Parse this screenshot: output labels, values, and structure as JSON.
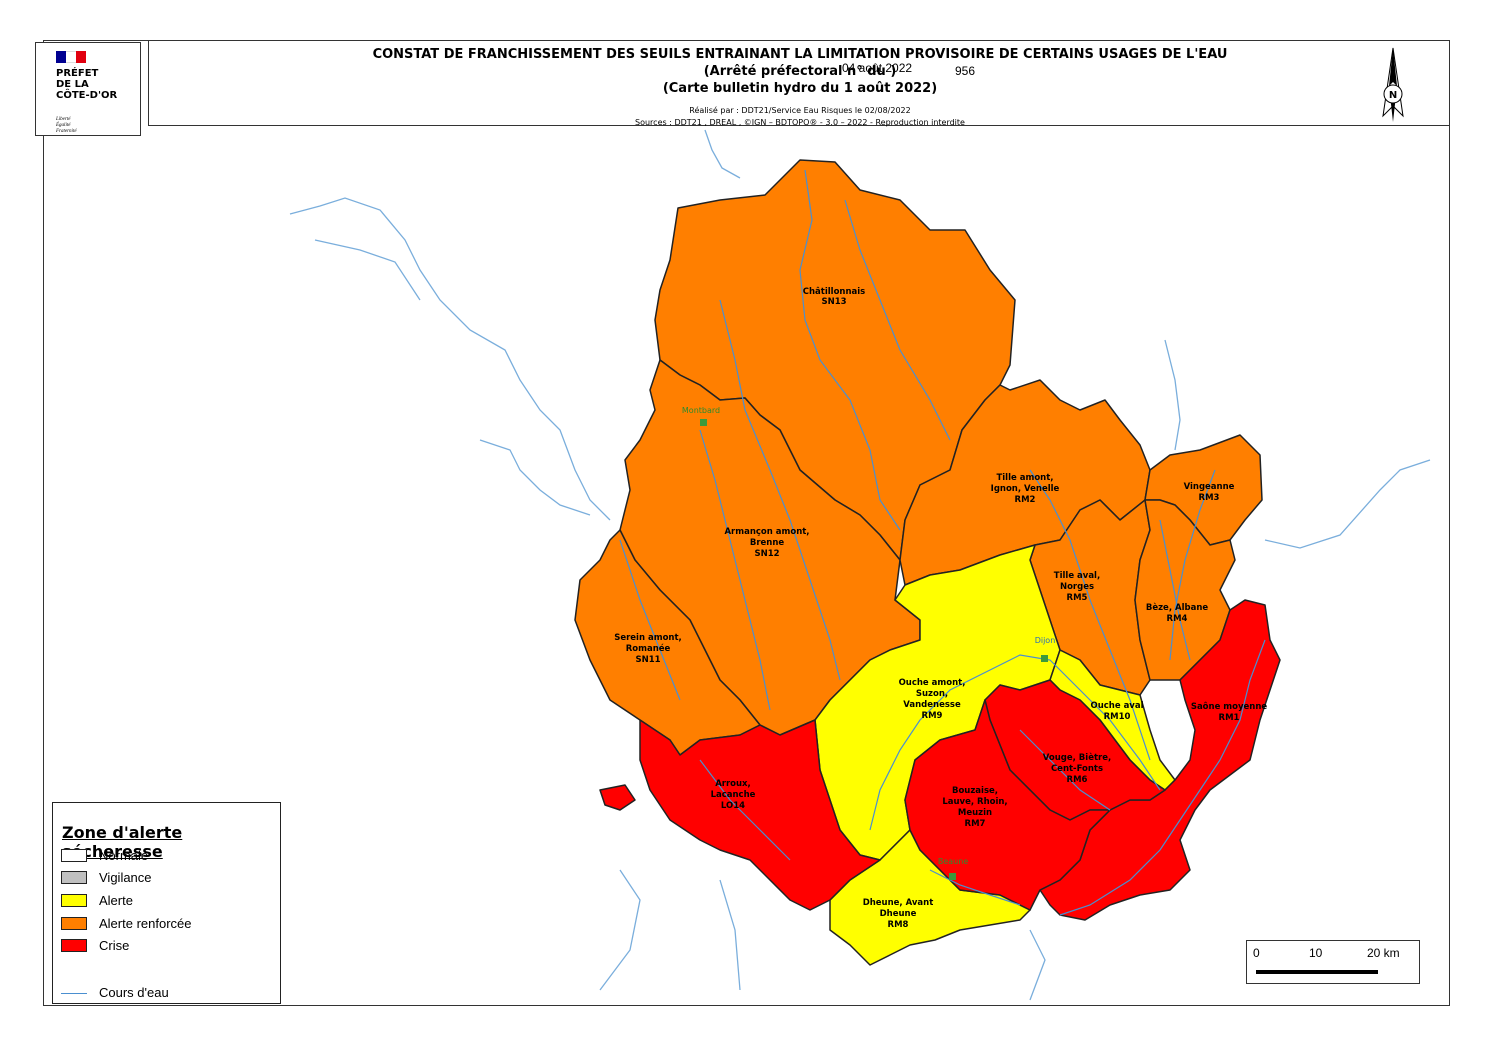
{
  "header": {
    "title_line1": "CONSTAT DE FRANCHISSEMENT DES SEUILS ENTRAINANT LA LIMITATION PROVISOIRE DE CERTAINS USAGES DE L'EAU",
    "title_line2": "(Arrêté préfectoral n°            du                                       )",
    "arrete_number": "956",
    "arrete_date": "04 août 2022",
    "title_line3": "(Carte bulletin hydro du 1 août 2022)",
    "made_by": "Réalisé par : DDT21/Service Eau Risques le 02/08/2022",
    "sources": "Sources : DDT21 , DREAL , ©IGN – BDTOPO® - 3.0 – 2022 - Reproduction interdite"
  },
  "logo": {
    "line1": "PRÉFET",
    "line2": "DE LA",
    "line3": "CÔTE-D'OR",
    "motto1": "Liberté",
    "motto2": "Égalité",
    "motto3": "Fraternité",
    "flag_colors": [
      "#000091",
      "#ffffff",
      "#e1000f"
    ]
  },
  "north_arrow": {
    "label": "N"
  },
  "colors": {
    "alerte": "#ffff00",
    "alerte_renforcee": "#ff7f00",
    "crise": "#ff0000",
    "normale": "#ffffff",
    "vigilance": "#c0c0c0",
    "cours_eau": "#4a8fd0",
    "city_marker": "#3c9a3c"
  },
  "zones": [
    {
      "name": "Châtillonnais",
      "code": "SN13",
      "status": "Alerte renforcée"
    },
    {
      "name": "Armançon amont, Brenne",
      "code": "SN12",
      "status": "Alerte renforcée"
    },
    {
      "name": "Serein amont, Romanée",
      "code": "SN11",
      "status": "Alerte renforcée"
    },
    {
      "name": "Tille amont, Ignon, Venelle",
      "code": "RM2",
      "status": "Alerte renforcée"
    },
    {
      "name": "Vingeanne",
      "code": "RM3",
      "status": "Alerte renforcée"
    },
    {
      "name": "Tille aval, Norges",
      "code": "RM5",
      "status": "Alerte renforcée"
    },
    {
      "name": "Bèze, Albane",
      "code": "RM4",
      "status": "Alerte renforcée"
    },
    {
      "name": "Ouche amont, Suzon, Vandenesse",
      "code": "RM9",
      "status": "Alerte"
    },
    {
      "name": "Ouche aval",
      "code": "RM10",
      "status": "Alerte"
    },
    {
      "name": "Dheune, Avant Dheune",
      "code": "RM8",
      "status": "Alerte"
    },
    {
      "name": "Saône moyenne",
      "code": "RM1",
      "status": "Crise"
    },
    {
      "name": "Vouge, Biètre, Cent-Fonts",
      "code": "RM6",
      "status": "Crise"
    },
    {
      "name": "Bouzaise, Lauve, Rhoin, Meuzin",
      "code": "RM7",
      "status": "Crise"
    },
    {
      "name": "Arroux, Lacanche",
      "code": "LO14",
      "status": "Crise"
    }
  ],
  "labels": {
    "chatillonnais_1": "Châtillonnais",
    "chatillonnais_2": "SN13",
    "armancon_1": "Armançon amont,",
    "armancon_2": "Brenne",
    "armancon_3": "SN12",
    "serein_1": "Serein amont,",
    "serein_2": "Romanée",
    "serein_3": "SN11",
    "tille_amont_1": "Tille amont,",
    "tille_amont_2": "Ignon, Venelle",
    "tille_amont_3": "RM2",
    "vingeanne_1": "Vingeanne",
    "vingeanne_2": "RM3",
    "tille_aval_1": "Tille aval,",
    "tille_aval_2": "Norges",
    "tille_aval_3": "RM5",
    "beze_1": "Bèze, Albane",
    "beze_2": "RM4",
    "ouche_amont_1": "Ouche amont,",
    "ouche_amont_2": "Suzon,",
    "ouche_amont_3": "Vandenesse",
    "ouche_amont_4": "RM9",
    "ouche_aval_1": "Ouche aval",
    "ouche_aval_2": "RM10",
    "saone_1": "Saône moyenne",
    "saone_2": "RM1",
    "vouge_1": "Vouge, Biètre,",
    "vouge_2": "Cent-Fonts",
    "vouge_3": "RM6",
    "bouzaise_1": "Bouzaise,",
    "bouzaise_2": "Lauve, Rhoin,",
    "bouzaise_3": "Meuzin",
    "bouzaise_4": "RM7",
    "arroux_1": "Arroux,",
    "arroux_2": "Lacanche",
    "arroux_3": "LO14",
    "dheune_1": "Dheune, Avant",
    "dheune_2": "Dheune",
    "dheune_3": "RM8"
  },
  "cities": {
    "montbard": "Montbard",
    "dijon": "Dijon",
    "beaune": "Beaune"
  },
  "legend": {
    "title": "Zone d'alerte sécheresse",
    "items": [
      "Normale",
      "Vigilance",
      "Alerte",
      "Alerte renforcée",
      "Crise"
    ],
    "river": "Cours d'eau"
  },
  "scale": {
    "l0": "0",
    "l1": "10",
    "l2": "20 km"
  }
}
